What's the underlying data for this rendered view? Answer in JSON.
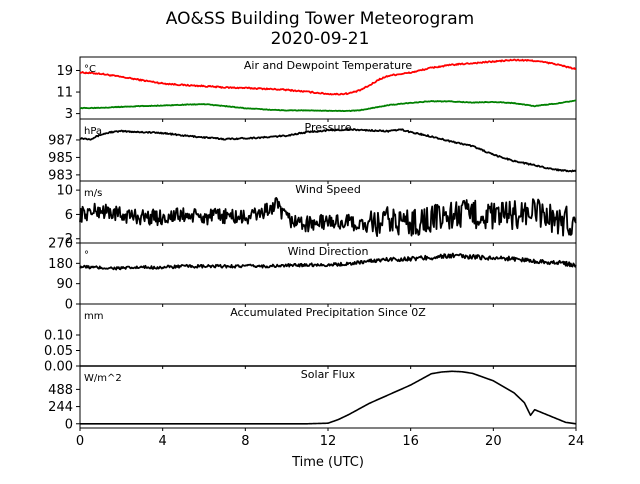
{
  "figure": {
    "title_line1": "AO&SS Building Tower Meteorogram",
    "title_line2": "2020-09-21",
    "xlabel": "Time (UTC)",
    "xticks": [
      0,
      4,
      8,
      12,
      16,
      20,
      24
    ],
    "xlim": [
      0,
      24
    ]
  },
  "chart_data": [
    {
      "type": "line",
      "title": "Air and Dewpoint Temperature",
      "unit": "°C",
      "ylim": [
        1,
        24
      ],
      "yticks": [
        3,
        11,
        19
      ],
      "series": [
        {
          "color": "#ff0000",
          "x": [
            0,
            1,
            2,
            3,
            4,
            5,
            6,
            7,
            8,
            9,
            10,
            11,
            12,
            12.5,
            13,
            13.5,
            14,
            14.5,
            15,
            16,
            17,
            18,
            19,
            20,
            21,
            22,
            23,
            24
          ],
          "y": [
            18.3,
            17.8,
            16.6,
            15.4,
            14.2,
            13.6,
            13.2,
            12.7,
            12.5,
            12.2,
            11.8,
            11.1,
            10.3,
            10.2,
            10.5,
            11.5,
            13.4,
            15.8,
            17.2,
            18.2,
            20.0,
            21.1,
            21.7,
            22.3,
            22.9,
            22.6,
            21.4,
            19.5
          ]
        },
        {
          "color": "#008000",
          "x": [
            0,
            1,
            2,
            3,
            4,
            5,
            6,
            7,
            8,
            9,
            10,
            11,
            12,
            13,
            13.5,
            14,
            15,
            16,
            17,
            18,
            19,
            20,
            21,
            22,
            23,
            24
          ],
          "y": [
            5.0,
            5.2,
            5.5,
            5.8,
            6.0,
            6.3,
            6.5,
            5.8,
            5.0,
            4.5,
            4.2,
            4.2,
            4.0,
            4.0,
            4.2,
            4.9,
            6.2,
            7.0,
            7.6,
            7.5,
            7.1,
            7.3,
            6.9,
            5.8,
            6.7,
            7.9
          ]
        }
      ]
    },
    {
      "type": "line",
      "title": "Pressure",
      "unit": "hPa",
      "ylim": [
        982.3,
        989.4
      ],
      "yticks": [
        983,
        985,
        987
      ],
      "series": [
        {
          "color": "#000000",
          "x": [
            0,
            0.5,
            1,
            1.5,
            2,
            3,
            4,
            5,
            6,
            7,
            8,
            9,
            10,
            11,
            12,
            13,
            14,
            15,
            15.5,
            16,
            17,
            18,
            19,
            20,
            21,
            22,
            23,
            24
          ],
          "y": [
            987.2,
            987.1,
            987.6,
            987.9,
            988.0,
            987.9,
            987.8,
            987.5,
            987.3,
            987.1,
            987.2,
            987.3,
            987.5,
            987.9,
            988.1,
            988.2,
            988.1,
            988.0,
            988.2,
            987.9,
            987.4,
            986.8,
            986.3,
            985.3,
            984.6,
            984.1,
            983.6,
            983.4
          ]
        }
      ]
    },
    {
      "type": "line",
      "title": "Wind Speed",
      "unit": "m/s",
      "ylim": [
        1.3,
        11.5
      ],
      "yticks": [
        2,
        6,
        10
      ],
      "series": [
        {
          "color": "#000000",
          "x": [
            0,
            1,
            2,
            3,
            4,
            5,
            6,
            7,
            8,
            9,
            9.5,
            10,
            11,
            12,
            13,
            14,
            15,
            16,
            17,
            18,
            19,
            20,
            21,
            22,
            23,
            24
          ],
          "y": [
            6.0,
            6.7,
            5.9,
            5.6,
            5.5,
            5.9,
            5.5,
            5.8,
            5.4,
            6.6,
            7.5,
            5.2,
            4.4,
            4.8,
            4.7,
            4.0,
            5.0,
            4.6,
            5.2,
            5.9,
            6.1,
            5.6,
            6.0,
            6.4,
            5.1,
            4.6
          ]
        }
      ]
    },
    {
      "type": "line",
      "title": "Wind Direction",
      "unit": "°",
      "ylim": [
        0,
        270
      ],
      "yticks": [
        0,
        90,
        180,
        270
      ],
      "series": [
        {
          "color": "#000000",
          "x": [
            0,
            1,
            2,
            3,
            4,
            5,
            6,
            7,
            8,
            9,
            10,
            11,
            12,
            13,
            14,
            15,
            16,
            17,
            18,
            19,
            20,
            21,
            22,
            23,
            24
          ],
          "y": [
            165,
            160,
            158,
            162,
            162,
            167,
            166,
            167,
            168,
            167,
            170,
            174,
            173,
            178,
            190,
            198,
            200,
            206,
            214,
            208,
            204,
            200,
            190,
            184,
            172
          ]
        }
      ]
    },
    {
      "type": "line",
      "title": "Accumulated Precipitation Since 0Z",
      "unit": "mm",
      "ylim": [
        0,
        0.2
      ],
      "yticks": [
        0.0,
        0.05,
        0.1
      ],
      "ytick_labels": [
        "0.00",
        "0.05",
        "0.10"
      ],
      "series": [
        {
          "color": "#000000",
          "x": [
            0,
            24
          ],
          "y": [
            0,
            0
          ]
        }
      ]
    },
    {
      "type": "line",
      "title": "Solar Flux",
      "unit": "W/m^2",
      "ylim": [
        -60,
        820
      ],
      "yticks": [
        0,
        244,
        488
      ],
      "series": [
        {
          "color": "#000000",
          "x": [
            0,
            11,
            12,
            12.5,
            13,
            13.5,
            14,
            15,
            16,
            17,
            17.5,
            18,
            18.5,
            19,
            20,
            21,
            21.5,
            21.7,
            21.8,
            22,
            22.5,
            23,
            23.5,
            24
          ],
          "y": [
            0,
            0,
            8,
            60,
            130,
            210,
            290,
            420,
            550,
            710,
            735,
            745,
            738,
            715,
            610,
            440,
            300,
            180,
            120,
            200,
            140,
            80,
            20,
            0
          ]
        }
      ]
    }
  ]
}
